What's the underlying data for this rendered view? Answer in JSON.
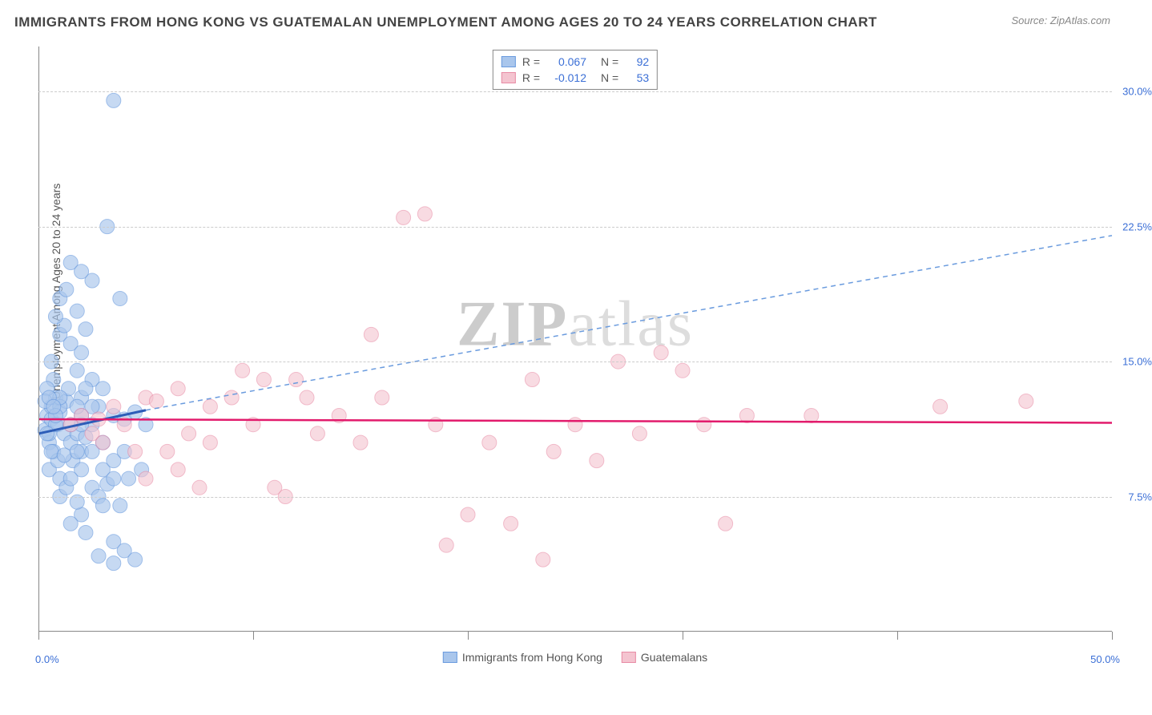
{
  "title": "IMMIGRANTS FROM HONG KONG VS GUATEMALAN UNEMPLOYMENT AMONG AGES 20 TO 24 YEARS CORRELATION CHART",
  "source": "Source: ZipAtlas.com",
  "ylabel": "Unemployment Among Ages 20 to 24 years",
  "watermark_a": "ZIP",
  "watermark_b": "atlas",
  "chart": {
    "type": "scatter",
    "background_color": "#ffffff",
    "grid_color": "#cccccc",
    "xlim": [
      0,
      50
    ],
    "ylim": [
      0,
      32.5
    ],
    "xtick_left": "0.0%",
    "xtick_right": "50.0%",
    "yticks": [
      {
        "v": 7.5,
        "label": "7.5%"
      },
      {
        "v": 15.0,
        "label": "15.0%"
      },
      {
        "v": 22.5,
        "label": "22.5%"
      },
      {
        "v": 30.0,
        "label": "30.0%"
      }
    ],
    "series": [
      {
        "name": "Immigrants from Hong Kong",
        "color_fill": "#a9c6ec",
        "color_stroke": "#6a9bde",
        "marker_opacity": 0.65,
        "marker_radius": 9,
        "R": "0.067",
        "N": "92",
        "trend_solid": {
          "x1": 0,
          "y1": 11.0,
          "x2": 5,
          "y2": 12.3,
          "color": "#2d5db8",
          "width": 3
        },
        "trend_dash": {
          "x1": 5,
          "y1": 12.3,
          "x2": 50,
          "y2": 22.0,
          "color": "#6a9bde",
          "width": 1.5
        },
        "points": [
          [
            0.3,
            11.2
          ],
          [
            0.4,
            12.0
          ],
          [
            0.5,
            10.5
          ],
          [
            0.6,
            11.8
          ],
          [
            0.6,
            12.5
          ],
          [
            0.7,
            10.0
          ],
          [
            0.8,
            13.0
          ],
          [
            0.9,
            11.5
          ],
          [
            1.0,
            12.2
          ],
          [
            0.5,
            9.0
          ],
          [
            0.7,
            14.0
          ],
          [
            1.2,
            11.0
          ],
          [
            1.3,
            12.8
          ],
          [
            1.0,
            8.5
          ],
          [
            1.5,
            10.5
          ],
          [
            1.8,
            11.0
          ],
          [
            2.0,
            12.0
          ],
          [
            2.2,
            10.8
          ],
          [
            1.4,
            13.5
          ],
          [
            0.9,
            9.5
          ],
          [
            2.5,
            8.0
          ],
          [
            2.8,
            7.5
          ],
          [
            3.0,
            9.0
          ],
          [
            3.2,
            8.2
          ],
          [
            2.0,
            6.5
          ],
          [
            2.2,
            5.5
          ],
          [
            3.5,
            5.0
          ],
          [
            4.0,
            4.5
          ],
          [
            4.5,
            4.0
          ],
          [
            3.8,
            7.0
          ],
          [
            1.8,
            7.2
          ],
          [
            1.5,
            6.0
          ],
          [
            2.8,
            4.2
          ],
          [
            3.5,
            3.8
          ],
          [
            1.0,
            16.5
          ],
          [
            1.2,
            17.0
          ],
          [
            1.5,
            16.0
          ],
          [
            1.8,
            17.8
          ],
          [
            2.0,
            15.5
          ],
          [
            2.2,
            16.8
          ],
          [
            1.0,
            18.5
          ],
          [
            1.3,
            19.0
          ],
          [
            1.8,
            14.5
          ],
          [
            2.5,
            14.0
          ],
          [
            3.0,
            13.5
          ],
          [
            2.8,
            12.5
          ],
          [
            3.5,
            12.0
          ],
          [
            4.0,
            11.8
          ],
          [
            4.5,
            12.2
          ],
          [
            5.0,
            11.5
          ],
          [
            1.5,
            20.5
          ],
          [
            0.8,
            17.5
          ],
          [
            0.6,
            15.0
          ],
          [
            0.4,
            13.5
          ],
          [
            2.0,
            13.0
          ],
          [
            2.5,
            11.5
          ],
          [
            1.0,
            7.5
          ],
          [
            1.3,
            8.0
          ],
          [
            1.6,
            9.5
          ],
          [
            2.0,
            10.0
          ],
          [
            0.5,
            11.0
          ],
          [
            0.8,
            11.5
          ],
          [
            1.0,
            12.5
          ],
          [
            3.0,
            10.5
          ],
          [
            3.5,
            9.5
          ],
          [
            4.0,
            10.0
          ],
          [
            0.3,
            12.8
          ],
          [
            0.4,
            11.0
          ],
          [
            0.6,
            10.0
          ],
          [
            0.8,
            12.0
          ],
          [
            1.0,
            13.0
          ],
          [
            3.0,
            7.0
          ],
          [
            3.5,
            8.5
          ],
          [
            2.0,
            9.0
          ],
          [
            2.5,
            10.0
          ],
          [
            1.5,
            11.5
          ],
          [
            1.8,
            12.5
          ],
          [
            2.2,
            13.5
          ],
          [
            4.2,
            8.5
          ],
          [
            4.8,
            9.0
          ],
          [
            3.5,
            29.5
          ],
          [
            3.2,
            22.5
          ],
          [
            2.5,
            19.5
          ],
          [
            3.8,
            18.5
          ],
          [
            2.0,
            20.0
          ],
          [
            0.5,
            13.0
          ],
          [
            0.7,
            12.5
          ],
          [
            1.2,
            9.8
          ],
          [
            1.5,
            8.5
          ],
          [
            1.8,
            10.0
          ],
          [
            2.0,
            11.5
          ],
          [
            2.5,
            12.5
          ]
        ]
      },
      {
        "name": "Guatemalans",
        "color_fill": "#f4c4d0",
        "color_stroke": "#e88ba5",
        "marker_opacity": 0.6,
        "marker_radius": 9,
        "R": "-0.012",
        "N": "53",
        "trend_solid": {
          "x1": 0,
          "y1": 11.8,
          "x2": 50,
          "y2": 11.6,
          "color": "#e21b6c",
          "width": 2.5
        },
        "points": [
          [
            1.5,
            11.5
          ],
          [
            2.0,
            12.0
          ],
          [
            2.5,
            11.0
          ],
          [
            3.0,
            10.5
          ],
          [
            3.5,
            12.5
          ],
          [
            4.0,
            11.5
          ],
          [
            5.0,
            13.0
          ],
          [
            5.5,
            12.8
          ],
          [
            6.0,
            10.0
          ],
          [
            6.5,
            13.5
          ],
          [
            7.0,
            11.0
          ],
          [
            8.0,
            12.5
          ],
          [
            9.0,
            13.0
          ],
          [
            9.5,
            14.5
          ],
          [
            10.0,
            11.5
          ],
          [
            10.5,
            14.0
          ],
          [
            11.0,
            8.0
          ],
          [
            11.5,
            7.5
          ],
          [
            12.0,
            14.0
          ],
          [
            12.5,
            13.0
          ],
          [
            13.0,
            11.0
          ],
          [
            14.0,
            12.0
          ],
          [
            15.0,
            10.5
          ],
          [
            16.0,
            13.0
          ],
          [
            17.0,
            23.0
          ],
          [
            18.0,
            23.2
          ],
          [
            18.5,
            11.5
          ],
          [
            19.0,
            4.8
          ],
          [
            20.0,
            6.5
          ],
          [
            21.0,
            10.5
          ],
          [
            22.0,
            6.0
          ],
          [
            23.0,
            14.0
          ],
          [
            23.5,
            4.0
          ],
          [
            24.0,
            10.0
          ],
          [
            25.0,
            11.5
          ],
          [
            26.0,
            9.5
          ],
          [
            27.0,
            15.0
          ],
          [
            28.0,
            11.0
          ],
          [
            29.0,
            15.5
          ],
          [
            30.0,
            14.5
          ],
          [
            31.0,
            11.5
          ],
          [
            32.0,
            6.0
          ],
          [
            33.0,
            12.0
          ],
          [
            36.0,
            12.0
          ],
          [
            42.0,
            12.5
          ],
          [
            46.0,
            12.8
          ],
          [
            5.0,
            8.5
          ],
          [
            6.5,
            9.0
          ],
          [
            8.0,
            10.5
          ],
          [
            15.5,
            16.5
          ],
          [
            4.5,
            10.0
          ],
          [
            7.5,
            8.0
          ],
          [
            2.8,
            11.8
          ]
        ]
      }
    ],
    "legend_top_labels": {
      "R": "R =",
      "N": "N ="
    },
    "legend_bottom": [
      {
        "label": "Immigrants from Hong Kong",
        "fill": "#a9c6ec",
        "stroke": "#6a9bde"
      },
      {
        "label": "Guatemalans",
        "fill": "#f4c4d0",
        "stroke": "#e88ba5"
      }
    ]
  }
}
